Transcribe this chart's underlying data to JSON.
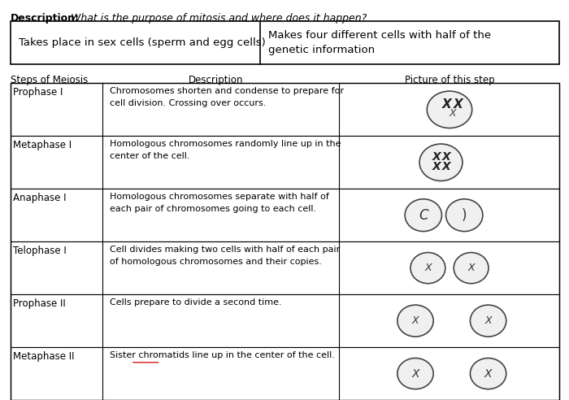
{
  "description_bold": "Description:",
  "description_italic": " What is the purpose of mitosis and where does it happen?",
  "answer_box_left": "Takes place in sex cells (sperm and egg cells)",
  "answer_box_right": "Makes four different cells with half of the\ngenetic information",
  "col_headers": [
    "Steps of Meiosis",
    "Description",
    "Picture of this step"
  ],
  "rows": [
    {
      "step": "Prophase I",
      "description": "Chromosomes shorten and condense to prepare for\ncell division. Crossing over occurs."
    },
    {
      "step": "Metaphase I",
      "description": "Homologous chromosomes randomly line up in the\ncenter of the cell."
    },
    {
      "step": "Anaphase I",
      "description": "Homologous chromosomes separate with half of\neach pair of chromosomes going to each cell."
    },
    {
      "step": "Telophase I",
      "description": "Cell divides making two cells with half of each pair\nof homologous chromosomes and their copies."
    },
    {
      "step": "Prophase II",
      "description": "Cells prepare to divide a second time."
    },
    {
      "step": "Metaphase II",
      "description": "Sister chromatids line up in the center of the cell.",
      "underline_word": "chromatids",
      "underline_before": "Sister "
    }
  ],
  "bg_color": "#ffffff",
  "text_color": "#000000"
}
